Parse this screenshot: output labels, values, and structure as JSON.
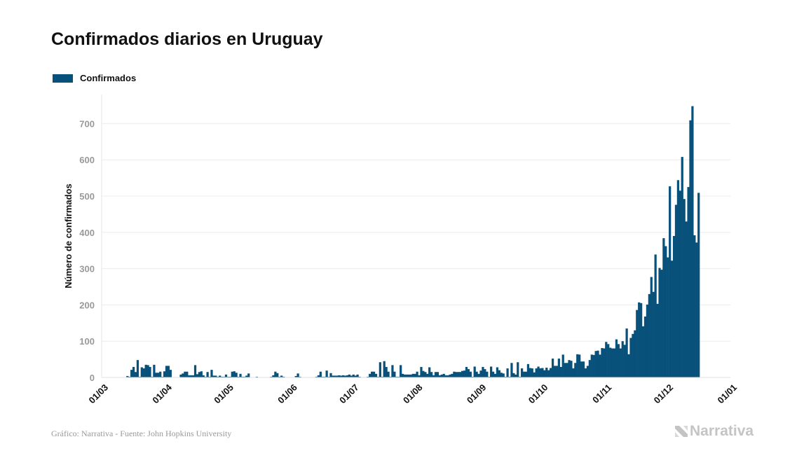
{
  "chart_data": {
    "type": "bar",
    "title": "Confirmados diarios en Uruguay",
    "ylabel": "Número de confirmados",
    "xlabel": "",
    "ylim": [
      0,
      780
    ],
    "yticks": [
      0,
      100,
      200,
      300,
      400,
      500,
      600,
      700
    ],
    "grid": true,
    "legend_position": "top-left",
    "x_range": [
      "2020-03-01",
      "2021-01-01"
    ],
    "xtick_dates": [
      "2020-03-01",
      "2020-04-01",
      "2020-05-01",
      "2020-06-01",
      "2020-07-01",
      "2020-08-01",
      "2020-09-01",
      "2020-10-01",
      "2020-11-01",
      "2020-12-01",
      "2021-01-01"
    ],
    "xtick_labels": [
      "01/03",
      "01/04",
      "01/05",
      "01/06",
      "01/07",
      "01/08",
      "01/09",
      "01/10",
      "01/11",
      "01/12",
      "01/01"
    ],
    "start_date": "2020-03-13",
    "series": [
      {
        "name": "Confirmados",
        "color": "#08517a",
        "values": [
          4,
          2,
          21,
          29,
          15,
          48,
          2,
          28,
          25,
          35,
          34,
          29,
          2,
          35,
          13,
          13,
          16,
          2,
          17,
          32,
          32,
          21,
          0,
          0,
          0,
          0,
          8,
          11,
          16,
          16,
          6,
          6,
          6,
          34,
          9,
          15,
          17,
          6,
          2,
          15,
          2,
          21,
          5,
          5,
          2,
          5,
          2,
          2,
          8,
          2,
          2,
          16,
          17,
          13,
          2,
          10,
          2,
          2,
          5,
          11,
          0,
          0,
          0,
          2,
          0,
          0,
          0,
          1,
          0,
          0,
          2,
          6,
          16,
          12,
          2,
          5,
          2,
          1,
          0,
          0,
          0,
          0,
          4,
          11,
          2,
          0,
          0,
          0,
          0,
          1,
          0,
          1,
          2,
          6,
          16,
          2,
          2,
          19,
          2,
          12,
          5,
          5,
          5,
          6,
          5,
          6,
          5,
          6,
          8,
          5,
          8,
          5,
          8,
          2,
          1,
          1,
          1,
          2,
          10,
          16,
          16,
          10,
          2,
          42,
          2,
          45,
          29,
          16,
          2,
          34,
          16,
          2,
          2,
          34,
          10,
          8,
          8,
          8,
          8,
          10,
          10,
          16,
          6,
          29,
          18,
          15,
          10,
          28,
          15,
          6,
          15,
          15,
          6,
          8,
          10,
          6,
          6,
          8,
          10,
          16,
          15,
          15,
          15,
          18,
          19,
          29,
          23,
          16,
          2,
          30,
          16,
          10,
          19,
          29,
          23,
          16,
          2,
          30,
          16,
          10,
          28,
          20,
          13,
          11,
          2,
          25,
          2,
          40,
          12,
          8,
          42,
          2,
          25,
          16,
          16,
          37,
          26,
          25,
          14,
          25,
          30,
          25,
          26,
          20,
          27,
          20,
          26,
          52,
          32,
          32,
          52,
          29,
          63,
          40,
          40,
          48,
          46,
          25,
          40,
          64,
          63,
          44,
          44,
          25,
          32,
          48,
          63,
          62,
          73,
          74,
          63,
          81,
          80,
          98,
          92,
          82,
          80,
          80,
          105,
          92,
          80,
          100,
          90,
          135,
          64,
          109,
          120,
          130,
          186,
          207,
          205,
          141,
          168,
          201,
          230,
          277,
          236,
          339,
          203,
          302,
          297,
          384,
          362,
          331,
          527,
          322,
          390,
          476,
          544,
          515,
          608,
          492,
          430,
          525,
          709,
          748,
          392,
          372,
          509
        ]
      }
    ]
  },
  "footer": {
    "source": "Gráfico: Narrativa - Fuente: John Hopkins University",
    "logo_text": "Narrativa"
  },
  "colors": {
    "bar": "#08517a",
    "grid": "#ececec",
    "tick": "#999999"
  }
}
